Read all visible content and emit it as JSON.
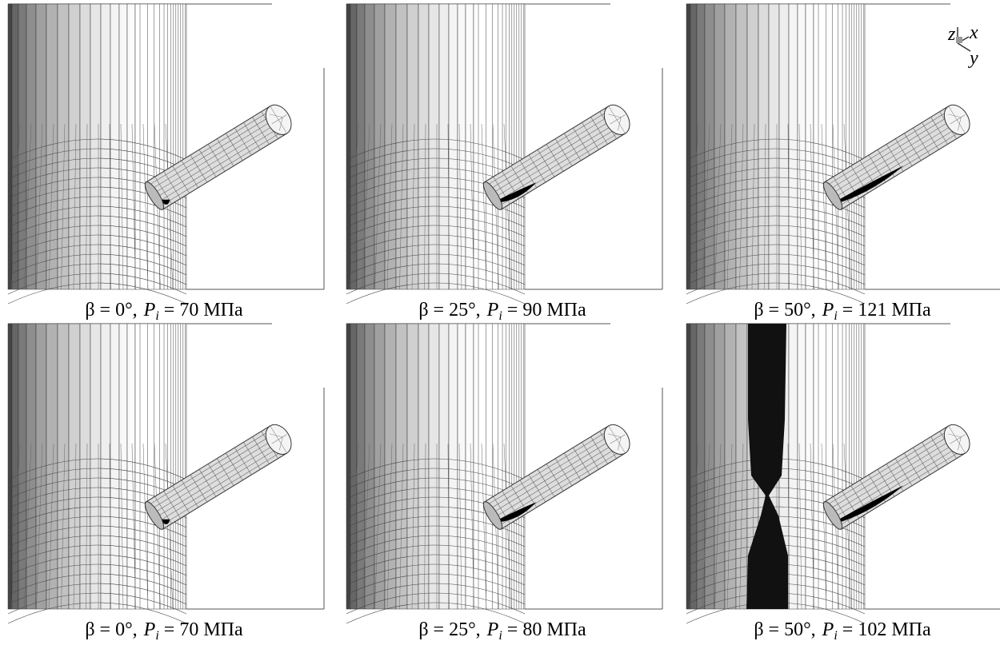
{
  "panels": [
    {
      "caption": {
        "angle": "β = 0°,",
        "symbol": "P",
        "subscript": "i",
        "value": "= 70 МПа"
      }
    },
    {
      "caption": {
        "angle": "β = 25°,",
        "symbol": "P",
        "subscript": "i",
        "value": "= 90 МПа"
      }
    },
    {
      "caption": {
        "angle": "β = 50°,",
        "symbol": "P",
        "subscript": "i",
        "value": "= 121 МПа"
      }
    },
    {
      "caption": {
        "angle": "β = 0°,",
        "symbol": "P",
        "subscript": "i",
        "value": "= 70 МПа"
      }
    },
    {
      "caption": {
        "angle": "β = 25°,",
        "symbol": "P",
        "subscript": "i",
        "value": "= 80 МПа"
      }
    },
    {
      "caption": {
        "angle": "β = 50°,",
        "symbol": "P",
        "subscript": "i",
        "value": "= 102 МПа"
      }
    }
  ],
  "axes": {
    "z": "z",
    "x": "x",
    "y": "y"
  }
}
